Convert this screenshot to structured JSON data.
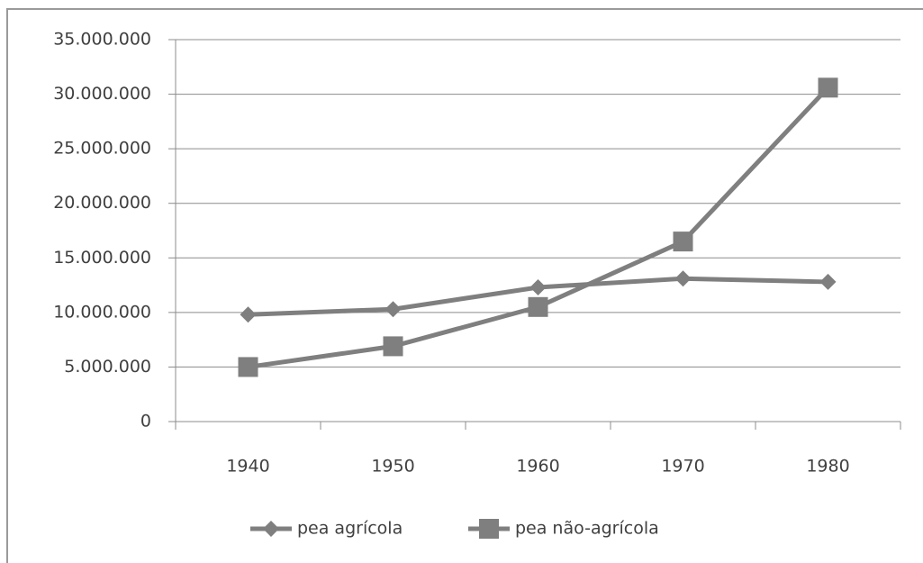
{
  "chart_data": {
    "type": "line",
    "categories": [
      "1940",
      "1950",
      "1960",
      "1970",
      "1980"
    ],
    "series": [
      {
        "name": "pea agrícola",
        "color": "#7f7f7f",
        "marker": "diamond",
        "values": [
          9800000,
          10300000,
          12300000,
          13100000,
          12800000
        ]
      },
      {
        "name": "pea não-agrícola",
        "color": "#7f7f7f",
        "marker": "square",
        "values": [
          5000000,
          6900000,
          10500000,
          16500000,
          30600000
        ]
      }
    ],
    "ylim": [
      0,
      35000000
    ],
    "yticks": [
      0,
      {
        "value": 5000000,
        "label": "5.000.000"
      },
      {
        "value": 10000000,
        "label": "10.000.000"
      },
      {
        "value": 15000000,
        "label": "15.000.000"
      },
      {
        "value": 20000000,
        "label": "20.000.000"
      },
      {
        "value": 25000000,
        "label": "25.000.000"
      },
      {
        "value": 30000000,
        "label": "30.000.000"
      },
      {
        "value": 35000000,
        "label": "35.000.000"
      }
    ],
    "grid": true,
    "legend": "bottom"
  }
}
